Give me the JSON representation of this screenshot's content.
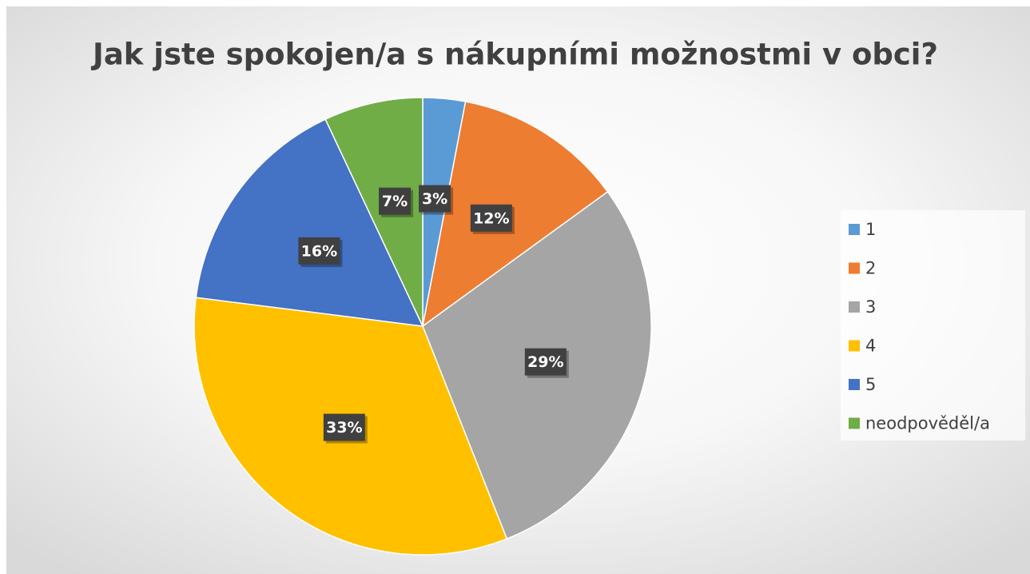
{
  "chart_data": {
    "type": "pie",
    "title": "Jak jste spokojen/a s nákupními možnostmi v obci?",
    "categories": [
      "1",
      "2",
      "3",
      "4",
      "5",
      "neodpověděl/a"
    ],
    "values": [
      3,
      12,
      29,
      33,
      16,
      7
    ],
    "value_labels": [
      "3%",
      "12%",
      "29%",
      "33%",
      "16%",
      "7%"
    ],
    "colors": [
      "#5b9bd5",
      "#ed7d31",
      "#a5a5a5",
      "#ffc000",
      "#4472c4",
      "#70ad47"
    ],
    "legend": "right"
  }
}
